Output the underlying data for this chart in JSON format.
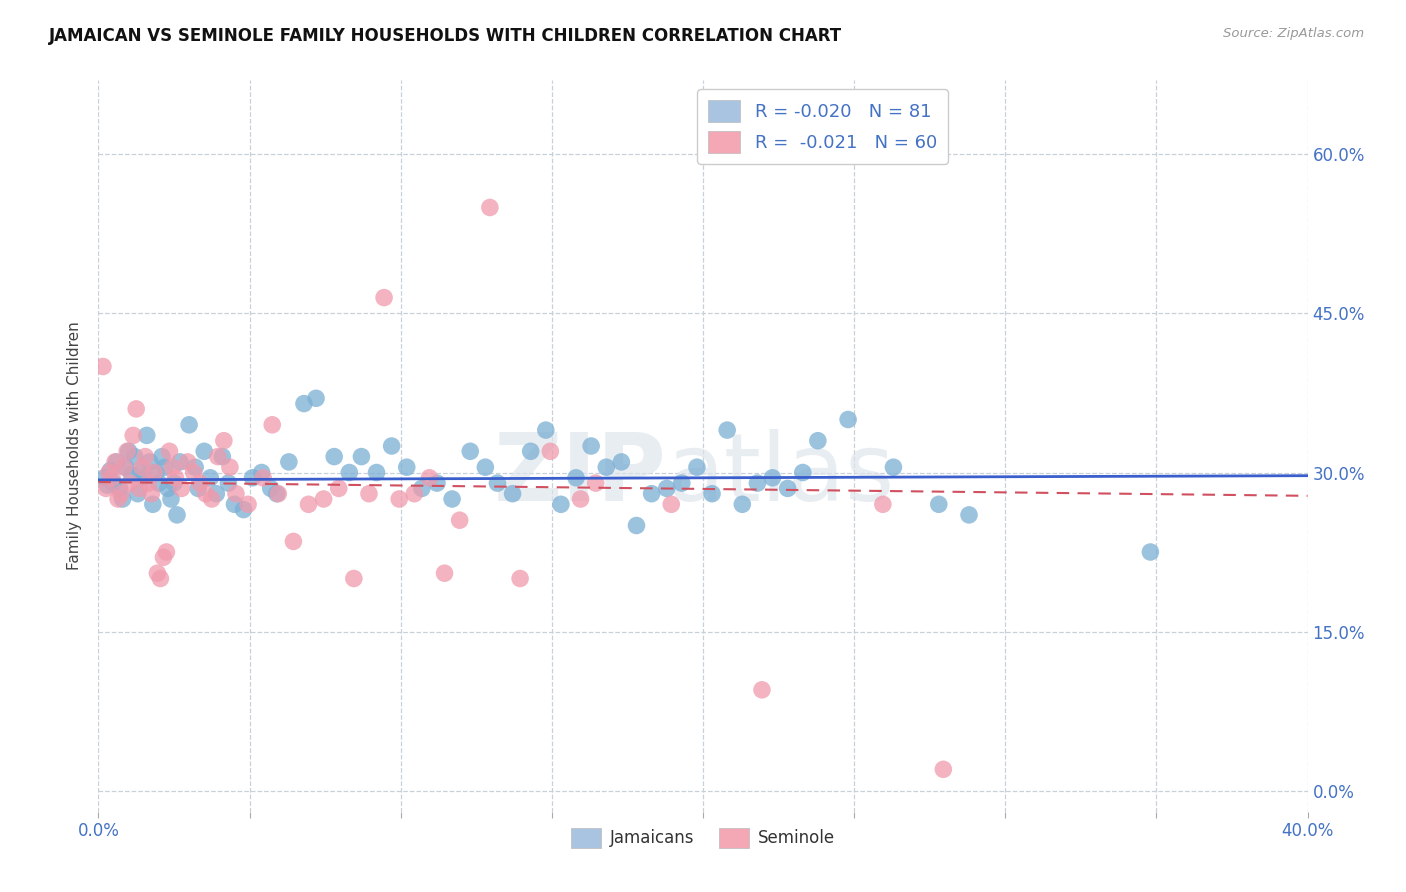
{
  "title": "JAMAICAN VS SEMINOLE FAMILY HOUSEHOLDS WITH CHILDREN CORRELATION CHART",
  "source": "Source: ZipAtlas.com",
  "ylabel": "Family Households with Children",
  "ytick_vals": [
    0.0,
    15.0,
    30.0,
    45.0,
    60.0
  ],
  "xlim": [
    0.0,
    40.0
  ],
  "ylim": [
    -2.0,
    67.0
  ],
  "legend_jamaican": {
    "R": "-0.020",
    "N": "81",
    "color": "#a8c4e0"
  },
  "legend_seminole": {
    "R": "-0.021",
    "N": "60",
    "color": "#f4a7b5"
  },
  "jamaican_color": "#7bafd4",
  "seminole_color": "#f09aac",
  "trend_jamaican_color": "#3a5fcd",
  "trend_seminole_color": "#d05060",
  "trend_j_y0": 29.3,
  "trend_j_y1": 29.7,
  "trend_s_y0": 29.1,
  "trend_s_y1": 27.8,
  "watermark": "ZIPatlas",
  "jamaican_points": [
    [
      0.2,
      29.5
    ],
    [
      0.3,
      28.8
    ],
    [
      0.4,
      30.2
    ],
    [
      0.5,
      29.0
    ],
    [
      0.6,
      31.0
    ],
    [
      0.7,
      28.5
    ],
    [
      0.8,
      27.5
    ],
    [
      0.9,
      30.5
    ],
    [
      1.0,
      32.0
    ],
    [
      1.1,
      29.8
    ],
    [
      1.2,
      31.5
    ],
    [
      1.3,
      28.0
    ],
    [
      1.4,
      30.0
    ],
    [
      1.5,
      29.5
    ],
    [
      1.6,
      33.5
    ],
    [
      1.7,
      31.0
    ],
    [
      1.8,
      27.0
    ],
    [
      1.9,
      30.0
    ],
    [
      2.0,
      29.0
    ],
    [
      2.1,
      31.5
    ],
    [
      2.2,
      30.5
    ],
    [
      2.3,
      28.5
    ],
    [
      2.4,
      27.5
    ],
    [
      2.5,
      29.0
    ],
    [
      2.6,
      26.0
    ],
    [
      2.7,
      31.0
    ],
    [
      3.0,
      34.5
    ],
    [
      3.2,
      30.5
    ],
    [
      3.3,
      28.5
    ],
    [
      3.5,
      32.0
    ],
    [
      3.7,
      29.5
    ],
    [
      3.9,
      28.0
    ],
    [
      4.1,
      31.5
    ],
    [
      4.3,
      29.0
    ],
    [
      4.5,
      27.0
    ],
    [
      4.8,
      26.5
    ],
    [
      5.1,
      29.5
    ],
    [
      5.4,
      30.0
    ],
    [
      5.7,
      28.5
    ],
    [
      5.9,
      28.0
    ],
    [
      6.3,
      31.0
    ],
    [
      6.8,
      36.5
    ],
    [
      7.2,
      37.0
    ],
    [
      7.8,
      31.5
    ],
    [
      8.3,
      30.0
    ],
    [
      8.7,
      31.5
    ],
    [
      9.2,
      30.0
    ],
    [
      9.7,
      32.5
    ],
    [
      10.2,
      30.5
    ],
    [
      10.7,
      28.5
    ],
    [
      11.2,
      29.0
    ],
    [
      11.7,
      27.5
    ],
    [
      12.3,
      32.0
    ],
    [
      12.8,
      30.5
    ],
    [
      13.2,
      29.0
    ],
    [
      13.7,
      28.0
    ],
    [
      14.3,
      32.0
    ],
    [
      14.8,
      34.0
    ],
    [
      15.3,
      27.0
    ],
    [
      15.8,
      29.5
    ],
    [
      16.3,
      32.5
    ],
    [
      16.8,
      30.5
    ],
    [
      17.3,
      31.0
    ],
    [
      17.8,
      25.0
    ],
    [
      18.3,
      28.0
    ],
    [
      18.8,
      28.5
    ],
    [
      19.3,
      29.0
    ],
    [
      19.8,
      30.5
    ],
    [
      20.3,
      28.0
    ],
    [
      20.8,
      34.0
    ],
    [
      21.3,
      27.0
    ],
    [
      21.8,
      29.0
    ],
    [
      22.3,
      29.5
    ],
    [
      22.8,
      28.5
    ],
    [
      23.3,
      30.0
    ],
    [
      23.8,
      33.0
    ],
    [
      24.8,
      35.0
    ],
    [
      26.3,
      30.5
    ],
    [
      27.8,
      27.0
    ],
    [
      28.8,
      26.0
    ],
    [
      34.8,
      22.5
    ]
  ],
  "seminole_points": [
    [
      0.15,
      40.0
    ],
    [
      0.25,
      28.5
    ],
    [
      0.35,
      30.0
    ],
    [
      0.45,
      29.5
    ],
    [
      0.55,
      31.0
    ],
    [
      0.65,
      27.5
    ],
    [
      0.75,
      28.0
    ],
    [
      0.85,
      30.5
    ],
    [
      0.95,
      32.0
    ],
    [
      1.05,
      29.0
    ],
    [
      1.15,
      33.5
    ],
    [
      1.25,
      36.0
    ],
    [
      1.35,
      28.5
    ],
    [
      1.45,
      30.5
    ],
    [
      1.55,
      31.5
    ],
    [
      1.65,
      29.0
    ],
    [
      1.75,
      28.0
    ],
    [
      1.85,
      30.0
    ],
    [
      1.95,
      20.5
    ],
    [
      2.05,
      20.0
    ],
    [
      2.15,
      22.0
    ],
    [
      2.25,
      22.5
    ],
    [
      2.35,
      32.0
    ],
    [
      2.45,
      30.5
    ],
    [
      2.55,
      29.5
    ],
    [
      2.75,
      28.5
    ],
    [
      2.95,
      31.0
    ],
    [
      3.15,
      30.0
    ],
    [
      3.35,
      29.0
    ],
    [
      3.55,
      28.0
    ],
    [
      3.75,
      27.5
    ],
    [
      3.95,
      31.5
    ],
    [
      4.15,
      33.0
    ],
    [
      4.35,
      30.5
    ],
    [
      4.55,
      28.0
    ],
    [
      4.95,
      27.0
    ],
    [
      5.45,
      29.5
    ],
    [
      5.75,
      34.5
    ],
    [
      5.95,
      28.0
    ],
    [
      6.45,
      23.5
    ],
    [
      6.95,
      27.0
    ],
    [
      7.45,
      27.5
    ],
    [
      7.95,
      28.5
    ],
    [
      8.45,
      20.0
    ],
    [
      8.95,
      28.0
    ],
    [
      9.45,
      46.5
    ],
    [
      9.95,
      27.5
    ],
    [
      10.45,
      28.0
    ],
    [
      10.95,
      29.5
    ],
    [
      11.45,
      20.5
    ],
    [
      11.95,
      25.5
    ],
    [
      12.95,
      55.0
    ],
    [
      13.95,
      20.0
    ],
    [
      14.95,
      32.0
    ],
    [
      15.95,
      27.5
    ],
    [
      16.45,
      29.0
    ],
    [
      18.95,
      27.0
    ],
    [
      21.95,
      9.5
    ],
    [
      25.95,
      27.0
    ],
    [
      27.95,
      2.0
    ]
  ]
}
